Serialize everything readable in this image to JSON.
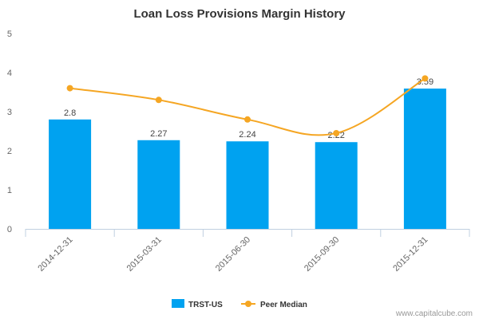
{
  "chart_data": {
    "type": "bar",
    "title": "Loan Loss Provisions Margin History",
    "xlabel": "",
    "ylabel": "",
    "categories": [
      "2014-12-31",
      "2015-03-31",
      "2015-06-30",
      "2015-09-30",
      "2015-12-31"
    ],
    "ylim": [
      0,
      5
    ],
    "yticks": [
      "0",
      "1",
      "2",
      "3",
      "4",
      "5"
    ],
    "grid": false,
    "legend_position": "bottom-center",
    "series": [
      {
        "name": "TRST-US",
        "type": "bar",
        "values": [
          2.8,
          2.27,
          2.24,
          2.22,
          3.59
        ],
        "labels": [
          "2.8",
          "2.27",
          "2.24",
          "2.22",
          "3.59"
        ],
        "color": "#00a2f0"
      },
      {
        "name": "Peer Median",
        "type": "line",
        "smooth": true,
        "values": [
          3.6,
          3.3,
          2.8,
          2.45,
          3.85
        ],
        "color": "#f5a623"
      }
    ]
  },
  "credit": "www.capitalcube.com",
  "colors": {
    "axis": "#c0d0e0",
    "tick": "#c0d0e0"
  }
}
